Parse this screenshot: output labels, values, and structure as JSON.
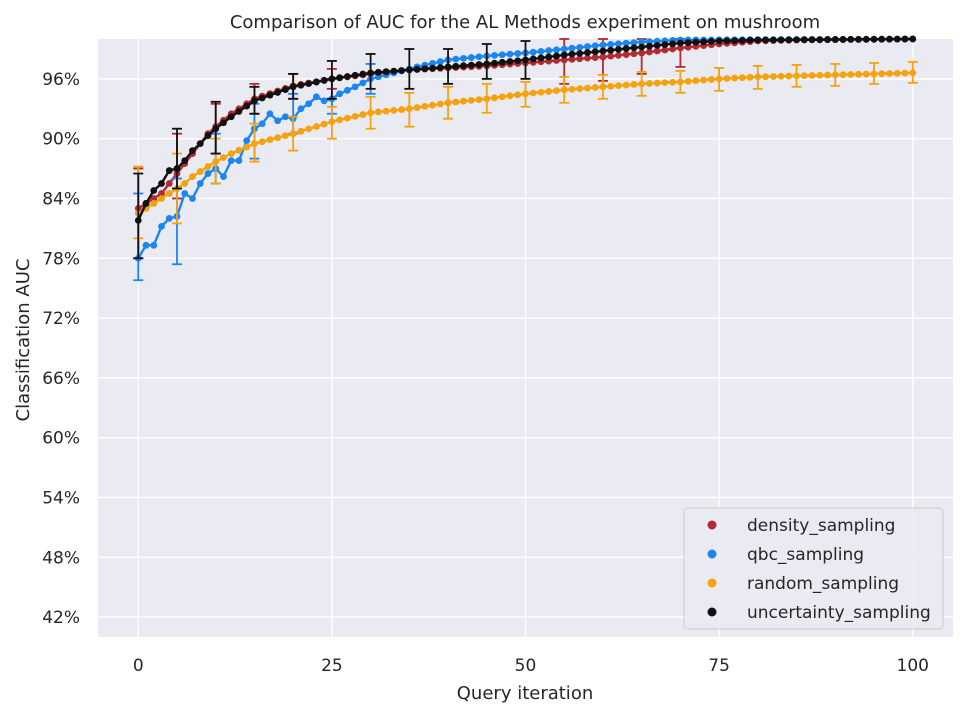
{
  "chart_data": {
    "type": "line",
    "title": "Comparison of AUC for the AL Methods experiment on mushroom",
    "xlabel": "Query iteration",
    "ylabel": "Classification AUC",
    "xlim": [
      -5.2,
      105.2
    ],
    "ylim": [
      0.4,
      1.0
    ],
    "xticks": [
      0,
      25,
      50,
      75,
      100
    ],
    "xtick_labels": [
      "0",
      "25",
      "50",
      "75",
      "100"
    ],
    "yticks": [
      0.42,
      0.48,
      0.54,
      0.6,
      0.66,
      0.72,
      0.78,
      0.84,
      0.9,
      0.96
    ],
    "ytick_labels": [
      "42%",
      "48%",
      "54%",
      "60%",
      "66%",
      "72%",
      "78%",
      "84%",
      "90%",
      "96%"
    ],
    "grid": true,
    "legend_position": "lower right",
    "background_color": "#EAEAF2",
    "series": [
      {
        "name": "density_sampling",
        "color": "#B22A33",
        "knots": [
          [
            0,
            0.83
          ],
          [
            1,
            0.835
          ],
          [
            2,
            0.84
          ],
          [
            3,
            0.845
          ],
          [
            4,
            0.855
          ],
          [
            5,
            0.865
          ],
          [
            6,
            0.875
          ],
          [
            7,
            0.885
          ],
          [
            8,
            0.895
          ],
          [
            9,
            0.905
          ],
          [
            10,
            0.912
          ],
          [
            12,
            0.925
          ],
          [
            15,
            0.94
          ],
          [
            20,
            0.953
          ],
          [
            25,
            0.96
          ],
          [
            30,
            0.965
          ],
          [
            35,
            0.969
          ],
          [
            40,
            0.971
          ],
          [
            45,
            0.973
          ],
          [
            50,
            0.976
          ],
          [
            55,
            0.979
          ],
          [
            60,
            0.982
          ],
          [
            65,
            0.986
          ],
          [
            70,
            0.991
          ],
          [
            75,
            0.995
          ],
          [
            80,
            0.998
          ],
          [
            85,
            0.999
          ],
          [
            100,
            1.0
          ]
        ],
        "error_bars": [
          {
            "x": 0,
            "lower": 0.78,
            "upper": 0.87
          },
          {
            "x": 5,
            "lower": 0.84,
            "upper": 0.905
          },
          {
            "x": 10,
            "lower": 0.885,
            "upper": 0.935
          },
          {
            "x": 15,
            "lower": 0.925,
            "upper": 0.955
          },
          {
            "x": 20,
            "lower": 0.94,
            "upper": 0.965
          },
          {
            "x": 25,
            "lower": 0.95,
            "upper": 0.97
          },
          {
            "x": 55,
            "lower": 0.955,
            "upper": 1.0
          },
          {
            "x": 60,
            "lower": 0.958,
            "upper": 1.0
          },
          {
            "x": 65,
            "lower": 0.965,
            "upper": 1.0
          },
          {
            "x": 70,
            "lower": 0.972,
            "upper": 1.0
          }
        ]
      },
      {
        "name": "qbc_sampling",
        "color": "#1B85F2",
        "knots": [
          [
            0,
            0.78
          ],
          [
            1,
            0.793
          ],
          [
            2,
            0.793
          ],
          [
            3,
            0.812
          ],
          [
            4,
            0.82
          ],
          [
            5,
            0.822
          ],
          [
            6,
            0.845
          ],
          [
            7,
            0.84
          ],
          [
            8,
            0.855
          ],
          [
            9,
            0.865
          ],
          [
            10,
            0.87
          ],
          [
            11,
            0.862
          ],
          [
            12,
            0.878
          ],
          [
            13,
            0.878
          ],
          [
            14,
            0.898
          ],
          [
            15,
            0.91
          ],
          [
            16,
            0.915
          ],
          [
            17,
            0.925
          ],
          [
            18,
            0.918
          ],
          [
            19,
            0.922
          ],
          [
            20,
            0.92
          ],
          [
            21,
            0.93
          ],
          [
            22,
            0.935
          ],
          [
            23,
            0.942
          ],
          [
            24,
            0.938
          ],
          [
            25,
            0.94
          ],
          [
            26,
            0.945
          ],
          [
            28,
            0.952
          ],
          [
            30,
            0.96
          ],
          [
            33,
            0.966
          ],
          [
            36,
            0.972
          ],
          [
            40,
            0.979
          ],
          [
            45,
            0.983
          ],
          [
            50,
            0.986
          ],
          [
            55,
            0.99
          ],
          [
            60,
            0.994
          ],
          [
            65,
            0.997
          ],
          [
            70,
            0.999
          ],
          [
            100,
            1.0
          ]
        ],
        "error_bars": [
          {
            "x": 0,
            "lower": 0.758,
            "upper": 0.845
          },
          {
            "x": 5,
            "lower": 0.774,
            "upper": 0.86
          },
          {
            "x": 10,
            "lower": 0.855,
            "upper": 0.905
          },
          {
            "x": 15,
            "lower": 0.88,
            "upper": 0.935
          },
          {
            "x": 20,
            "lower": 0.905,
            "upper": 0.945
          },
          {
            "x": 25,
            "lower": 0.925,
            "upper": 0.96
          },
          {
            "x": 30,
            "lower": 0.945,
            "upper": 0.975
          }
        ]
      },
      {
        "name": "random_sampling",
        "color": "#F5A20F",
        "knots": [
          [
            0,
            0.825
          ],
          [
            1,
            0.83
          ],
          [
            2,
            0.835
          ],
          [
            3,
            0.84
          ],
          [
            4,
            0.845
          ],
          [
            5,
            0.85
          ],
          [
            6,
            0.855
          ],
          [
            7,
            0.862
          ],
          [
            8,
            0.867
          ],
          [
            9,
            0.872
          ],
          [
            10,
            0.877
          ],
          [
            12,
            0.885
          ],
          [
            15,
            0.895
          ],
          [
            20,
            0.905
          ],
          [
            25,
            0.917
          ],
          [
            30,
            0.926
          ],
          [
            35,
            0.93
          ],
          [
            40,
            0.936
          ],
          [
            45,
            0.94
          ],
          [
            50,
            0.945
          ],
          [
            55,
            0.949
          ],
          [
            60,
            0.952
          ],
          [
            65,
            0.955
          ],
          [
            70,
            0.957
          ],
          [
            75,
            0.96
          ],
          [
            80,
            0.962
          ],
          [
            85,
            0.963
          ],
          [
            90,
            0.964
          ],
          [
            95,
            0.965
          ],
          [
            100,
            0.966
          ]
        ],
        "error_bars": [
          {
            "x": 0,
            "lower": 0.8,
            "upper": 0.872
          },
          {
            "x": 5,
            "lower": 0.815,
            "upper": 0.885
          },
          {
            "x": 10,
            "lower": 0.855,
            "upper": 0.9
          },
          {
            "x": 15,
            "lower": 0.877,
            "upper": 0.915
          },
          {
            "x": 20,
            "lower": 0.888,
            "upper": 0.922
          },
          {
            "x": 25,
            "lower": 0.9,
            "upper": 0.932
          },
          {
            "x": 30,
            "lower": 0.91,
            "upper": 0.942
          },
          {
            "x": 35,
            "lower": 0.912,
            "upper": 0.946
          },
          {
            "x": 40,
            "lower": 0.92,
            "upper": 0.952
          },
          {
            "x": 45,
            "lower": 0.926,
            "upper": 0.955
          },
          {
            "x": 50,
            "lower": 0.932,
            "upper": 0.957
          },
          {
            "x": 55,
            "lower": 0.936,
            "upper": 0.962
          },
          {
            "x": 60,
            "lower": 0.94,
            "upper": 0.964
          },
          {
            "x": 65,
            "lower": 0.943,
            "upper": 0.967
          },
          {
            "x": 70,
            "lower": 0.946,
            "upper": 0.968
          },
          {
            "x": 75,
            "lower": 0.948,
            "upper": 0.971
          },
          {
            "x": 80,
            "lower": 0.95,
            "upper": 0.973
          },
          {
            "x": 85,
            "lower": 0.952,
            "upper": 0.974
          },
          {
            "x": 90,
            "lower": 0.953,
            "upper": 0.975
          },
          {
            "x": 95,
            "lower": 0.955,
            "upper": 0.976
          },
          {
            "x": 100,
            "lower": 0.956,
            "upper": 0.977
          }
        ]
      },
      {
        "name": "uncertainty_sampling",
        "color": "#111111",
        "knots": [
          [
            0,
            0.818
          ],
          [
            1,
            0.835
          ],
          [
            2,
            0.848
          ],
          [
            3,
            0.855
          ],
          [
            4,
            0.868
          ],
          [
            5,
            0.87
          ],
          [
            6,
            0.878
          ],
          [
            7,
            0.888
          ],
          [
            8,
            0.895
          ],
          [
            9,
            0.903
          ],
          [
            10,
            0.91
          ],
          [
            12,
            0.922
          ],
          [
            15,
            0.938
          ],
          [
            20,
            0.952
          ],
          [
            25,
            0.96
          ],
          [
            30,
            0.966
          ],
          [
            35,
            0.969
          ],
          [
            40,
            0.972
          ],
          [
            45,
            0.975
          ],
          [
            50,
            0.979
          ],
          [
            55,
            0.984
          ],
          [
            60,
            0.988
          ],
          [
            65,
            0.992
          ],
          [
            70,
            0.996
          ],
          [
            75,
            0.998
          ],
          [
            80,
            0.999
          ],
          [
            100,
            1.0
          ]
        ],
        "error_bars": [
          {
            "x": 0,
            "lower": 0.78,
            "upper": 0.865
          },
          {
            "x": 5,
            "lower": 0.85,
            "upper": 0.91
          },
          {
            "x": 10,
            "lower": 0.885,
            "upper": 0.937
          },
          {
            "x": 15,
            "lower": 0.925,
            "upper": 0.952
          },
          {
            "x": 20,
            "lower": 0.94,
            "upper": 0.965
          },
          {
            "x": 25,
            "lower": 0.94,
            "upper": 0.978
          },
          {
            "x": 30,
            "lower": 0.95,
            "upper": 0.985
          },
          {
            "x": 35,
            "lower": 0.95,
            "upper": 0.99
          },
          {
            "x": 40,
            "lower": 0.955,
            "upper": 0.99
          },
          {
            "x": 45,
            "lower": 0.96,
            "upper": 0.995
          },
          {
            "x": 50,
            "lower": 0.96,
            "upper": 0.998
          }
        ]
      }
    ]
  }
}
